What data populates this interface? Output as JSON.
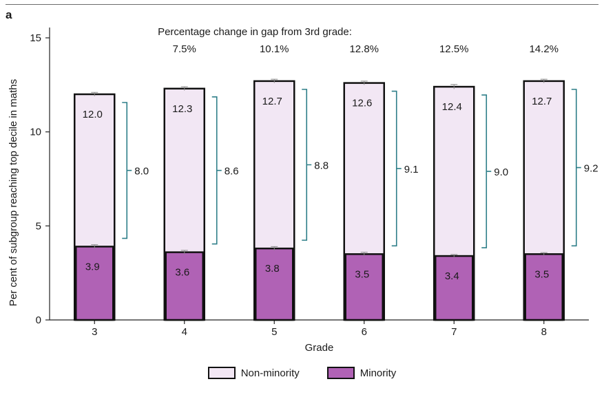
{
  "panel_label": "a",
  "colors": {
    "non_minority": "#f2e7f4",
    "minority": "#b062b5",
    "bracket": "#2d7e88",
    "axis": "#222222"
  },
  "chart_data": {
    "type": "bar",
    "layout": "overlaid",
    "categories": [
      "3",
      "4",
      "5",
      "6",
      "7",
      "8"
    ],
    "xlabel": "Grade",
    "ylabel": "Per cent of subgroup reaching top decile in maths",
    "ylim": [
      0,
      15
    ],
    "yticks": [
      0,
      5,
      10,
      15
    ],
    "grid": false,
    "legend_position": "bottom-center",
    "series": [
      {
        "name": "Non-minority",
        "values": [
          12.0,
          12.3,
          12.7,
          12.6,
          12.4,
          12.7
        ],
        "error": [
          0.1,
          0.1,
          0.1,
          0.1,
          0.12,
          0.1
        ]
      },
      {
        "name": "Minority",
        "values": [
          3.9,
          3.6,
          3.8,
          3.5,
          3.4,
          3.5
        ],
        "error": [
          0.1,
          0.1,
          0.1,
          0.1,
          0.08,
          0.08
        ]
      }
    ],
    "gap_labels": [
      "8.0",
      "8.6",
      "8.8",
      "9.1",
      "9.0",
      "9.2"
    ],
    "value_labels": {
      "non_minority": [
        "12.0",
        "12.3",
        "12.7",
        "12.6",
        "12.4",
        "12.7"
      ],
      "minority": [
        "3.9",
        "3.6",
        "3.8",
        "3.5",
        "3.4",
        "3.5"
      ]
    },
    "annotation_title": "Percentage change in gap from 3rd grade:",
    "pct_change": [
      "",
      "7.5%",
      "10.1%",
      "12.8%",
      "12.5%",
      "14.2%"
    ]
  }
}
